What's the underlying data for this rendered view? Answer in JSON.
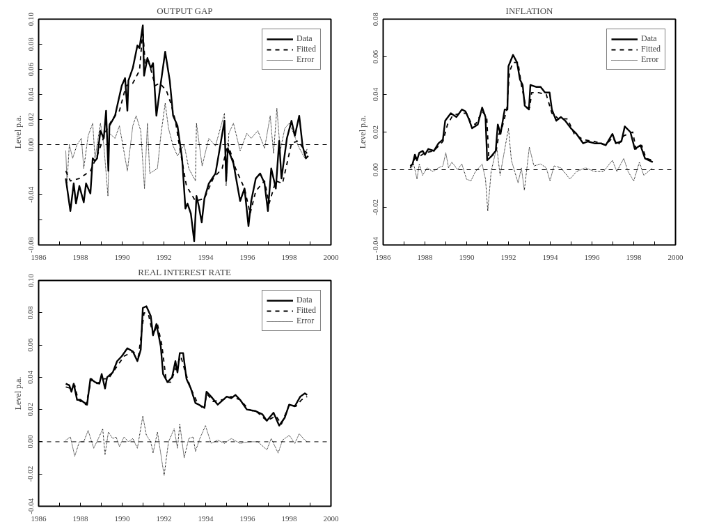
{
  "chart_data": [
    {
      "type": "line",
      "title": "OUTPUT GAP",
      "ylabel": "Level p.a.",
      "xlim": [
        1986,
        2000
      ],
      "ylim": [
        -0.08,
        0.1
      ],
      "xticks": [
        1986,
        {
          "value": 1987,
          "label": null
        },
        1988,
        {
          "value": 1989,
          "label": null
        },
        1990,
        {
          "value": 1991,
          "label": null
        },
        1992,
        {
          "value": 1993,
          "label": null
        },
        1994,
        {
          "value": 1995,
          "label": null
        },
        1996,
        {
          "value": 1997,
          "label": null
        },
        1998,
        {
          "value": 1999,
          "label": null
        },
        2000
      ],
      "yticks": [
        {
          "value": -0.08,
          "label": "-0.08"
        },
        {
          "value": -0.06,
          "label": null
        },
        {
          "value": -0.04,
          "label": "-0.04"
        },
        {
          "value": -0.02,
          "label": null
        },
        {
          "value": 0.0,
          "label": "0.00"
        },
        {
          "value": 0.02,
          "label": "0.02"
        },
        {
          "value": 0.04,
          "label": "0.04"
        },
        {
          "value": 0.06,
          "label": "0.06"
        },
        {
          "value": 0.08,
          "label": "0.08"
        },
        {
          "value": 0.1,
          "label": "0.10"
        }
      ],
      "grid": false,
      "legend": "top right",
      "ref_lines": [
        {
          "axis": "y",
          "value": 0,
          "line_style": "dashed"
        }
      ],
      "series": [
        {
          "name": "Data",
          "color": "#000000",
          "line_style": "solid",
          "x": [
            1987.3,
            1987.52,
            1987.68,
            1987.79,
            1987.95,
            1988.16,
            1988.27,
            1988.48,
            1988.59,
            1988.7,
            1988.8,
            1988.96,
            1989.12,
            1989.23,
            1989.34,
            1989.39,
            1989.66,
            1989.98,
            1990.14,
            1990.25,
            1990.3,
            1990.51,
            1990.73,
            1990.83,
            1990.99,
            1991.05,
            1991.21,
            1991.37,
            1991.48,
            1991.64,
            1991.8,
            1992.06,
            1992.28,
            1992.44,
            1992.65,
            1992.87,
            1993.03,
            1993.13,
            1993.29,
            1993.45,
            1993.56,
            1993.67,
            1993.81,
            1993.94,
            1994.15,
            1994.47,
            1994.9,
            1994.98,
            1995.06,
            1995.33,
            1995.65,
            1995.86,
            1996.05,
            1996.18,
            1996.4,
            1996.61,
            1996.82,
            1996.98,
            1997.14,
            1997.36,
            1997.52,
            1997.63,
            1997.89,
            1998.11,
            1998.27,
            1998.48,
            1998.64,
            1998.8,
            1998.91
          ],
          "values": [
            -0.027,
            -0.053,
            -0.031,
            -0.047,
            -0.033,
            -0.046,
            -0.031,
            -0.039,
            -0.011,
            -0.013,
            -0.011,
            0.011,
            0.005,
            0.027,
            -0.021,
            0.015,
            0.023,
            0.047,
            0.053,
            0.027,
            0.051,
            0.061,
            0.079,
            0.077,
            0.095,
            0.055,
            0.069,
            0.061,
            0.065,
            0.023,
            0.043,
            0.074,
            0.051,
            0.023,
            0.015,
            -0.011,
            -0.051,
            -0.047,
            -0.055,
            -0.077,
            -0.041,
            -0.049,
            -0.062,
            -0.043,
            -0.031,
            -0.023,
            0.019,
            -0.029,
            -0.003,
            -0.015,
            -0.045,
            -0.035,
            -0.065,
            -0.045,
            -0.027,
            -0.023,
            -0.031,
            -0.053,
            -0.019,
            -0.035,
            0.003,
            -0.027,
            0.005,
            0.019,
            0.007,
            0.023,
            -0.001,
            -0.011,
            -0.009
          ]
        },
        {
          "name": "Fitted",
          "color": "#000000",
          "line_style": "dashed",
          "x": [
            1987.3,
            1987.52,
            1987.95,
            1988.48,
            1988.8,
            1989.23,
            1989.55,
            1989.87,
            1990.19,
            1990.51,
            1990.83,
            1990.99,
            1991.1,
            1991.26,
            1991.58,
            1991.8,
            1992.12,
            1992.33,
            1992.55,
            1992.76,
            1993.08,
            1993.51,
            1993.94,
            1994.36,
            1994.79,
            1995.06,
            1995.43,
            1995.86,
            1996.13,
            1996.4,
            1996.82,
            1997.04,
            1997.36,
            1997.68,
            1998.11,
            1998.43,
            1998.75,
            1998.86
          ],
          "values": [
            -0.021,
            -0.029,
            -0.027,
            -0.021,
            -0.009,
            0.011,
            0.021,
            0.027,
            0.047,
            0.049,
            0.059,
            0.091,
            0.065,
            0.067,
            0.047,
            0.049,
            0.043,
            0.033,
            0.019,
            -0.003,
            -0.033,
            -0.045,
            -0.043,
            -0.027,
            -0.019,
            0.001,
            -0.019,
            -0.035,
            -0.055,
            -0.037,
            -0.029,
            -0.047,
            -0.029,
            -0.031,
            0.001,
            0.003,
            -0.005,
            -0.007
          ]
        },
        {
          "name": "Error",
          "color": "#000000",
          "line_style": "dotted",
          "x": [
            1987.3,
            1987.36,
            1987.47,
            1987.63,
            1987.84,
            1988.05,
            1988.16,
            1988.37,
            1988.59,
            1988.7,
            1988.96,
            1989.12,
            1989.32,
            1989.39,
            1989.66,
            1989.87,
            1990.25,
            1990.51,
            1990.67,
            1990.89,
            1991.07,
            1991.21,
            1991.32,
            1991.69,
            1991.85,
            1992.06,
            1992.22,
            1992.44,
            1992.65,
            1992.97,
            1993.19,
            1993.51,
            1993.56,
            1993.83,
            1994.15,
            1994.47,
            1994.9,
            1994.98,
            1995.11,
            1995.33,
            1995.65,
            1995.97,
            1996.18,
            1996.5,
            1996.82,
            1997.09,
            1997.25,
            1997.41,
            1997.57,
            1997.79,
            1998.0,
            1998.21,
            1998.43,
            1998.75,
            1998.86
          ],
          "values": [
            -0.005,
            -0.031,
            0.0,
            -0.011,
            0.0,
            0.005,
            -0.019,
            0.007,
            0.017,
            -0.011,
            0.017,
            0.0,
            -0.041,
            0.009,
            0.005,
            0.015,
            -0.021,
            0.015,
            0.023,
            0.011,
            -0.035,
            0.017,
            -0.023,
            -0.019,
            0.007,
            0.033,
            0.013,
            -0.001,
            -0.009,
            0.0,
            -0.019,
            -0.029,
            0.017,
            -0.017,
            0.005,
            -0.001,
            0.025,
            -0.033,
            0.009,
            0.017,
            -0.005,
            0.009,
            0.005,
            0.011,
            -0.003,
            0.023,
            -0.007,
            0.029,
            -0.005,
            0.013,
            0.017,
            0.009,
            -0.001,
            -0.011,
            -0.003
          ]
        }
      ]
    },
    {
      "type": "line",
      "title": "INFLATION",
      "ylabel": "Level p.a.",
      "xlim": [
        1986,
        2000
      ],
      "ylim": [
        -0.04,
        0.08
      ],
      "xticks": [
        1986,
        {
          "value": 1987,
          "label": null
        },
        1988,
        {
          "value": 1989,
          "label": null
        },
        1990,
        {
          "value": 1991,
          "label": null
        },
        1992,
        {
          "value": 1993,
          "label": null
        },
        1994,
        {
          "value": 1995,
          "label": null
        },
        1996,
        {
          "value": 1997,
          "label": null
        },
        1998,
        {
          "value": 1999,
          "label": null
        },
        2000
      ],
      "yticks": [
        {
          "value": -0.04,
          "label": "-0.04"
        },
        {
          "value": -0.02,
          "label": "-0.02"
        },
        {
          "value": 0.0,
          "label": "0.00"
        },
        {
          "value": 0.02,
          "label": "0.02"
        },
        {
          "value": 0.04,
          "label": "0.04"
        },
        {
          "value": 0.06,
          "label": "0.06"
        },
        {
          "value": 0.08,
          "label": "0.08"
        }
      ],
      "grid": false,
      "legend": "top right",
      "ref_lines": [
        {
          "axis": "y",
          "value": 0,
          "line_style": "dashed"
        }
      ],
      "series": [
        {
          "name": "Data",
          "color": "#000000",
          "line_style": "solid",
          "x": [
            1987.3,
            1987.41,
            1987.52,
            1987.62,
            1987.73,
            1987.89,
            1988.0,
            1988.16,
            1988.43,
            1988.65,
            1988.86,
            1988.97,
            1989.24,
            1989.51,
            1989.77,
            1989.94,
            1990.1,
            1990.26,
            1990.53,
            1990.74,
            1990.9,
            1990.98,
            1991.17,
            1991.39,
            1991.49,
            1991.62,
            1991.82,
            1991.95,
            1992.0,
            1992.22,
            1992.41,
            1992.55,
            1992.68,
            1992.78,
            1992.98,
            1993.05,
            1993.32,
            1993.54,
            1993.75,
            1993.97,
            1994.08,
            1994.29,
            1994.51,
            1994.72,
            1994.99,
            1995.26,
            1995.58,
            1995.8,
            1996.12,
            1996.44,
            1996.66,
            1996.98,
            1997.14,
            1997.41,
            1997.57,
            1997.84,
            1998.05,
            1998.32,
            1998.54,
            1998.91
          ],
          "values": [
            0.002,
            0.003,
            0.008,
            0.005,
            0.009,
            0.01,
            0.008,
            0.011,
            0.01,
            0.014,
            0.016,
            0.026,
            0.03,
            0.028,
            0.032,
            0.031,
            0.027,
            0.022,
            0.024,
            0.033,
            0.028,
            0.005,
            0.007,
            0.01,
            0.024,
            0.019,
            0.032,
            0.032,
            0.055,
            0.061,
            0.057,
            0.048,
            0.045,
            0.034,
            0.032,
            0.045,
            0.044,
            0.044,
            0.041,
            0.041,
            0.032,
            0.026,
            0.028,
            0.026,
            0.022,
            0.019,
            0.014,
            0.015,
            0.014,
            0.014,
            0.013,
            0.019,
            0.014,
            0.015,
            0.023,
            0.02,
            0.011,
            0.013,
            0.006,
            0.004
          ]
        },
        {
          "name": "Fitted",
          "color": "#000000",
          "line_style": "dashed",
          "x": [
            1987.3,
            1987.52,
            1987.73,
            1988.0,
            1988.43,
            1988.86,
            1989.08,
            1989.34,
            1989.77,
            1989.99,
            1990.2,
            1990.42,
            1990.74,
            1990.96,
            1991.06,
            1991.39,
            1991.55,
            1991.71,
            1991.92,
            1992.05,
            1992.22,
            1992.46,
            1992.62,
            1992.84,
            1993.02,
            1993.11,
            1993.43,
            1993.81,
            1994.08,
            1994.4,
            1994.83,
            1995.15,
            1995.58,
            1996.12,
            1996.66,
            1996.98,
            1997.25,
            1997.52,
            1997.95,
            1998.11,
            1998.38,
            1998.59,
            1998.91
          ],
          "values": [
            0.001,
            0.006,
            0.007,
            0.009,
            0.01,
            0.015,
            0.024,
            0.029,
            0.03,
            0.03,
            0.025,
            0.024,
            0.031,
            0.028,
            0.006,
            0.009,
            0.019,
            0.023,
            0.032,
            0.052,
            0.057,
            0.057,
            0.045,
            0.033,
            0.033,
            0.041,
            0.041,
            0.04,
            0.03,
            0.027,
            0.027,
            0.019,
            0.016,
            0.015,
            0.013,
            0.017,
            0.013,
            0.018,
            0.02,
            0.011,
            0.013,
            0.006,
            0.005
          ]
        },
        {
          "name": "Error",
          "color": "#000000",
          "line_style": "dotted",
          "x": [
            1987.3,
            1987.46,
            1987.62,
            1987.73,
            1987.89,
            1988.11,
            1988.38,
            1988.65,
            1988.86,
            1989.0,
            1989.13,
            1989.29,
            1989.56,
            1989.77,
            1989.99,
            1990.2,
            1990.42,
            1990.74,
            1990.9,
            1991.01,
            1991.17,
            1991.44,
            1991.6,
            1991.76,
            1992.0,
            1992.14,
            1992.46,
            1992.62,
            1992.76,
            1993.0,
            1993.22,
            1993.54,
            1993.81,
            1993.99,
            1994.18,
            1994.51,
            1994.94,
            1995.26,
            1995.69,
            1996.12,
            1996.55,
            1996.98,
            1997.19,
            1997.52,
            1997.73,
            1998.0,
            1998.27,
            1998.48,
            1998.91
          ],
          "values": [
            0.0,
            0.003,
            -0.005,
            0.003,
            -0.003,
            0.001,
            -0.001,
            0.001,
            0.002,
            0.009,
            0.001,
            0.004,
            0.0,
            0.003,
            -0.005,
            -0.006,
            -0.001,
            0.003,
            -0.005,
            -0.022,
            -0.001,
            0.012,
            -0.003,
            0.007,
            0.022,
            0.005,
            -0.007,
            0.001,
            -0.011,
            0.012,
            0.002,
            0.003,
            0.001,
            -0.006,
            0.002,
            0.001,
            -0.005,
            -0.001,
            0.001,
            -0.001,
            -0.001,
            0.005,
            -0.001,
            0.006,
            -0.001,
            -0.006,
            0.004,
            -0.003,
            0.001
          ]
        }
      ]
    },
    {
      "type": "line",
      "title": "REAL INTEREST RATE",
      "ylabel": "Level p.a.",
      "xlim": [
        1986,
        2000
      ],
      "ylim": [
        -0.04,
        0.1
      ],
      "xticks": [
        1986,
        {
          "value": 1987,
          "label": null
        },
        1988,
        {
          "value": 1989,
          "label": null
        },
        1990,
        {
          "value": 1991,
          "label": null
        },
        1992,
        {
          "value": 1993,
          "label": null
        },
        1994,
        {
          "value": 1995,
          "label": null
        },
        1996,
        {
          "value": 1997,
          "label": null
        },
        1998,
        {
          "value": 1999,
          "label": null
        },
        2000
      ],
      "yticks": [
        {
          "value": -0.04,
          "label": "-0.04"
        },
        {
          "value": -0.02,
          "label": "-0.02"
        },
        {
          "value": 0.0,
          "label": "0.00"
        },
        {
          "value": 0.02,
          "label": "0.02"
        },
        {
          "value": 0.04,
          "label": "0.04"
        },
        {
          "value": 0.06,
          "label": "0.06"
        },
        {
          "value": 0.08,
          "label": "0.08"
        },
        {
          "value": 0.1,
          "label": "0.10"
        }
      ],
      "grid": false,
      "legend": "top right",
      "ref_lines": [
        {
          "axis": "y",
          "value": 0,
          "line_style": "dashed"
        }
      ],
      "series": [
        {
          "name": "Data",
          "color": "#000000",
          "line_style": "solid",
          "x": [
            1987.3,
            1987.47,
            1987.57,
            1987.68,
            1987.84,
            1988.0,
            1988.32,
            1988.48,
            1988.7,
            1988.91,
            1989.02,
            1989.18,
            1989.28,
            1989.55,
            1989.76,
            1989.98,
            1990.25,
            1990.51,
            1990.73,
            1990.89,
            1990.99,
            1991.16,
            1991.37,
            1991.48,
            1991.64,
            1991.85,
            1991.96,
            1992.17,
            1992.39,
            1992.55,
            1992.65,
            1992.76,
            1992.92,
            1993.08,
            1993.29,
            1993.51,
            1993.67,
            1993.94,
            1994.04,
            1994.26,
            1994.58,
            1995.01,
            1995.22,
            1995.43,
            1995.65,
            1995.97,
            1996.4,
            1996.72,
            1996.93,
            1997.25,
            1997.52,
            1997.79,
            1998.0,
            1998.27,
            1998.53,
            1998.75,
            1998.86
          ],
          "values": [
            0.036,
            0.035,
            0.031,
            0.036,
            0.026,
            0.026,
            0.023,
            0.039,
            0.037,
            0.036,
            0.042,
            0.033,
            0.04,
            0.043,
            0.05,
            0.053,
            0.058,
            0.056,
            0.05,
            0.057,
            0.083,
            0.084,
            0.078,
            0.066,
            0.073,
            0.059,
            0.042,
            0.037,
            0.04,
            0.05,
            0.043,
            0.055,
            0.055,
            0.039,
            0.033,
            0.024,
            0.023,
            0.021,
            0.031,
            0.028,
            0.023,
            0.028,
            0.027,
            0.029,
            0.026,
            0.02,
            0.019,
            0.017,
            0.013,
            0.018,
            0.01,
            0.015,
            0.023,
            0.022,
            0.028,
            0.03,
            0.029
          ]
        },
        {
          "name": "Fitted",
          "color": "#000000",
          "line_style": "dashed",
          "x": [
            1987.3,
            1987.57,
            1987.73,
            1987.89,
            1988.27,
            1988.53,
            1988.8,
            1989.12,
            1989.34,
            1989.66,
            1990.09,
            1990.51,
            1990.78,
            1991.05,
            1991.26,
            1991.48,
            1991.69,
            1991.9,
            1992.12,
            1992.33,
            1992.55,
            1992.81,
            1993.03,
            1993.29,
            1993.61,
            1993.94,
            1994.04,
            1994.36,
            1994.79,
            1995.22,
            1995.65,
            1996.07,
            1996.5,
            1996.93,
            1997.36,
            1997.63,
            1998.0,
            1998.32,
            1998.59,
            1998.86
          ],
          "values": [
            0.034,
            0.033,
            0.035,
            0.026,
            0.023,
            0.039,
            0.036,
            0.039,
            0.039,
            0.045,
            0.053,
            0.056,
            0.053,
            0.08,
            0.079,
            0.066,
            0.073,
            0.06,
            0.037,
            0.037,
            0.045,
            0.053,
            0.043,
            0.033,
            0.024,
            0.02,
            0.03,
            0.025,
            0.026,
            0.028,
            0.026,
            0.02,
            0.018,
            0.013,
            0.016,
            0.011,
            0.023,
            0.022,
            0.026,
            0.028
          ]
        },
        {
          "name": "Error",
          "color": "#000000",
          "line_style": "dotted",
          "x": [
            1987.3,
            1987.52,
            1987.73,
            1987.95,
            1988.16,
            1988.37,
            1988.64,
            1988.86,
            1989.07,
            1989.18,
            1989.34,
            1989.55,
            1989.71,
            1989.87,
            1990.09,
            1990.3,
            1990.51,
            1990.73,
            1990.99,
            1991.16,
            1991.37,
            1991.48,
            1991.69,
            1992.01,
            1992.22,
            1992.49,
            1992.65,
            1992.76,
            1992.97,
            1993.19,
            1993.4,
            1993.51,
            1993.72,
            1993.99,
            1994.26,
            1994.58,
            1994.9,
            1995.22,
            1995.65,
            1996.07,
            1996.5,
            1996.93,
            1997.14,
            1997.47,
            1997.68,
            1998.0,
            1998.27,
            1998.48,
            1998.75,
            1998.86
          ],
          "values": [
            0.001,
            0.003,
            -0.009,
            0.0,
            0.0,
            0.007,
            -0.004,
            0.002,
            0.008,
            -0.008,
            0.006,
            0.002,
            0.003,
            -0.003,
            0.003,
            0.0,
            0.002,
            -0.004,
            0.016,
            0.004,
            0.0,
            -0.007,
            0.006,
            -0.021,
            0.0,
            0.008,
            -0.004,
            0.011,
            -0.01,
            0.002,
            0.003,
            -0.006,
            0.002,
            0.01,
            -0.001,
            0.001,
            -0.001,
            0.002,
            -0.001,
            0.0,
            0.0,
            -0.005,
            0.002,
            -0.007,
            0.001,
            0.004,
            -0.001,
            0.005,
            0.001,
            0.0
          ]
        }
      ]
    }
  ]
}
